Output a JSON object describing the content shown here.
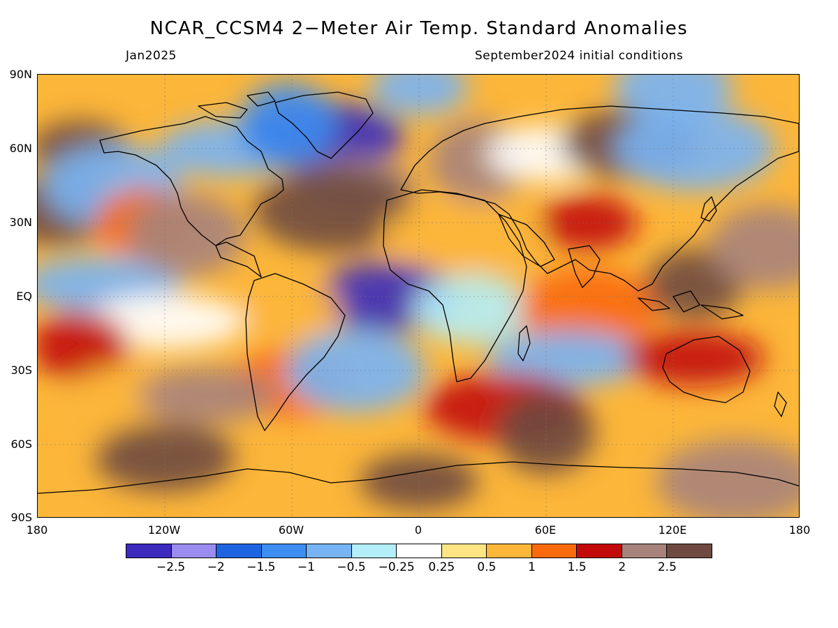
{
  "title": "NCAR_CCSM4 2−Meter Air Temp. Standard Anomalies",
  "subtitle_left": "Jan2025",
  "subtitle_right": "September2024 initial conditions",
  "lat_labels": [
    "90N",
    "60N",
    "30N",
    "EQ",
    "30S",
    "60S",
    "90S"
  ],
  "lon_labels": [
    "180",
    "120W",
    "60W",
    "0",
    "60E",
    "120E",
    "180"
  ],
  "colorbar": {
    "colors": [
      "#3c2bbd",
      "#9b8cf2",
      "#1e64e0",
      "#3d8ef0",
      "#78b4f5",
      "#b4eef8",
      "#ffffff",
      "#fde584",
      "#fcb63a",
      "#f86a0c",
      "#c20a0a",
      "#a7837c",
      "#6e4a40"
    ],
    "labels": [
      "−2.5",
      "−2",
      "−1.5",
      "−1",
      "−0.5",
      "−0.25",
      "0.25",
      "0.5",
      "1",
      "1.5",
      "2",
      "2.5"
    ]
  },
  "legend_ticks": [
    "-2.5",
    "-2",
    "-1.5",
    "-1",
    "-0.5",
    "-0.25",
    "0.25",
    "0.5",
    "1",
    "1.5",
    "2",
    "2.5"
  ],
  "anomaly_regions": [
    {
      "lon": -160,
      "lat": 60,
      "value": 2.6
    },
    {
      "lon": -172,
      "lat": 35,
      "value": 2.6
    },
    {
      "lon": -145,
      "lat": 45,
      "value": -1.0
    },
    {
      "lon": -150,
      "lat": 5,
      "value": -0.8
    },
    {
      "lon": -130,
      "lat": 30,
      "value": 1.2
    },
    {
      "lon": -110,
      "lat": 25,
      "value": 2.2
    },
    {
      "lon": -90,
      "lat": 60,
      "value": -1.0
    },
    {
      "lon": -45,
      "lat": 65,
      "value": -2.6
    },
    {
      "lon": -62,
      "lat": 70,
      "value": -1.5
    },
    {
      "lon": -30,
      "lat": 45,
      "value": 2.0
    },
    {
      "lon": -15,
      "lat": 0,
      "value": -2.6
    },
    {
      "lon": -40,
      "lat": 35,
      "value": 2.6
    },
    {
      "lon": -60,
      "lat": -5,
      "value": 0.5
    },
    {
      "lon": -60,
      "lat": -35,
      "value": 1.2
    },
    {
      "lon": -30,
      "lat": -30,
      "value": -1.0
    },
    {
      "lon": -120,
      "lat": -10,
      "value": 0.1
    },
    {
      "lon": -160,
      "lat": -20,
      "value": 1.6
    },
    {
      "lon": -140,
      "lat": -45,
      "value": 0.6
    },
    {
      "lon": -100,
      "lat": -40,
      "value": 2.0
    },
    {
      "lon": 20,
      "lat": 25,
      "value": 0.5
    },
    {
      "lon": 28,
      "lat": 55,
      "value": 2.0
    },
    {
      "lon": 60,
      "lat": 58,
      "value": 0.1
    },
    {
      "lon": 100,
      "lat": 62,
      "value": 2.6
    },
    {
      "lon": 130,
      "lat": 60,
      "value": -1.0
    },
    {
      "lon": 80,
      "lat": 30,
      "value": 1.6
    },
    {
      "lon": 25,
      "lat": -5,
      "value": -0.5
    },
    {
      "lon": 80,
      "lat": -5,
      "value": 1.2
    },
    {
      "lon": 70,
      "lat": -25,
      "value": -0.6
    },
    {
      "lon": 130,
      "lat": 5,
      "value": 2.6
    },
    {
      "lon": 165,
      "lat": 20,
      "value": 2.0
    },
    {
      "lon": 130,
      "lat": -25,
      "value": 1.6
    },
    {
      "lon": 40,
      "lat": -45,
      "value": 1.6
    },
    {
      "lon": 60,
      "lat": -55,
      "value": 2.6
    },
    {
      "lon": 0,
      "lat": -75,
      "value": 2.6
    },
    {
      "lon": -120,
      "lat": -65,
      "value": 2.6
    },
    {
      "lon": 150,
      "lat": -75,
      "value": 2.0
    },
    {
      "lon": 0,
      "lat": 85,
      "value": -0.8
    },
    {
      "lon": 120,
      "lat": 85,
      "value": -0.8
    }
  ]
}
